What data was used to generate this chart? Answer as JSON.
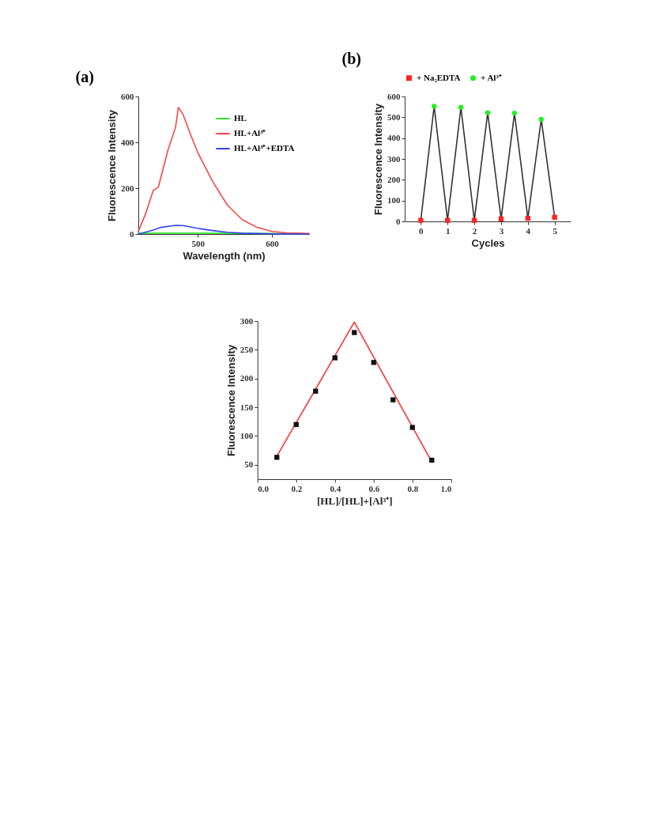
{
  "chart_data": [
    {
      "type": "line",
      "title": "(a)",
      "xlabel": "Wavelength (nm)",
      "ylabel": "Fluorescence Intensity",
      "xlim": [
        420,
        650
      ],
      "xticks": [
        500,
        600
      ],
      "ylim": [
        0,
        600
      ],
      "yticks": [
        0,
        200,
        400,
        600
      ],
      "legend": "top right",
      "marker": "none",
      "series": [
        {
          "name": "HL",
          "color": "#33dd33",
          "x": [
            420,
            450,
            500,
            550,
            600,
            650
          ],
          "values": [
            3,
            4,
            4,
            3,
            2,
            1
          ]
        },
        {
          "name": "HL+Al³⁺",
          "color": "#ff4444",
          "x": [
            420,
            430,
            440,
            447,
            460,
            470,
            474,
            480,
            490,
            500,
            520,
            540,
            560,
            580,
            600,
            620,
            650
          ],
          "values": [
            11,
            90,
            190,
            205,
            367,
            464,
            552,
            523,
            437,
            356,
            230,
            126,
            63,
            29,
            11,
            5,
            2
          ]
        },
        {
          "name": "HL+Al³⁺+EDTA",
          "color": "#3344ee",
          "x": [
            420,
            440,
            450,
            470,
            480,
            500,
            520,
            540,
            560,
            600,
            650
          ],
          "values": [
            0,
            17,
            29,
            38,
            37,
            25,
            15,
            8,
            4,
            1,
            0
          ]
        }
      ]
    },
    {
      "type": "line",
      "title": "(b)",
      "xlabel": "Cycles",
      "ylabel": "Fluorescence Intensity",
      "xlim": [
        -0.6,
        5.6
      ],
      "xticks": [
        0,
        1,
        2,
        3,
        4,
        5
      ],
      "ylim": [
        0,
        600
      ],
      "yticks": [
        0,
        100,
        200,
        300,
        400,
        500,
        600
      ],
      "legend": "top",
      "series": [
        {
          "color": "#333333",
          "marker": "none",
          "x": [
            0,
            0.5,
            1,
            1.5,
            2,
            2.5,
            3,
            3.5,
            4,
            4.5,
            5
          ],
          "values": [
            5,
            553,
            5,
            548,
            5,
            522,
            12,
            520,
            15,
            490,
            20
          ]
        },
        {
          "type": "scatter",
          "name": "+ Na₂EDTA",
          "color": "#ff2222",
          "marker": "square",
          "x": [
            0,
            1,
            2,
            3,
            4,
            5
          ],
          "values": [
            5,
            5,
            5,
            12,
            15,
            20
          ]
        },
        {
          "type": "scatter",
          "name": "+ Al³⁺",
          "color": "#22ee22",
          "marker": "circle",
          "x": [
            0.5,
            1.5,
            2.5,
            3.5,
            4.5
          ],
          "values": [
            553,
            548,
            522,
            520,
            490
          ]
        }
      ]
    },
    {
      "type": "scatter",
      "xlabel": "[HL]/[HL]+[Al³⁺]",
      "ylabel": "Fluorescence Intensity",
      "xlim": [
        0,
        1
      ],
      "xticks": [
        {
          "value": 0,
          "label": "0.0"
        },
        0.2,
        0.4,
        0.6,
        0.8,
        {
          "value": 1,
          "label": "1.0"
        }
      ],
      "ylim": [
        25,
        300
      ],
      "yticks": [
        50,
        100,
        150,
        200,
        250,
        300
      ],
      "series": [
        {
          "type": "line",
          "color": "#ff3333",
          "marker": "none",
          "x": [
            0.1,
            0.5,
            0.9
          ],
          "values": [
            65,
            298,
            55
          ]
        },
        {
          "color": "#111111",
          "marker": "square",
          "x": [
            0.1,
            0.2,
            0.3,
            0.4,
            0.5,
            0.6,
            0.7,
            0.8,
            0.9
          ],
          "values": [
            63,
            120,
            178,
            236,
            280,
            228,
            163,
            115,
            58
          ]
        }
      ]
    }
  ]
}
